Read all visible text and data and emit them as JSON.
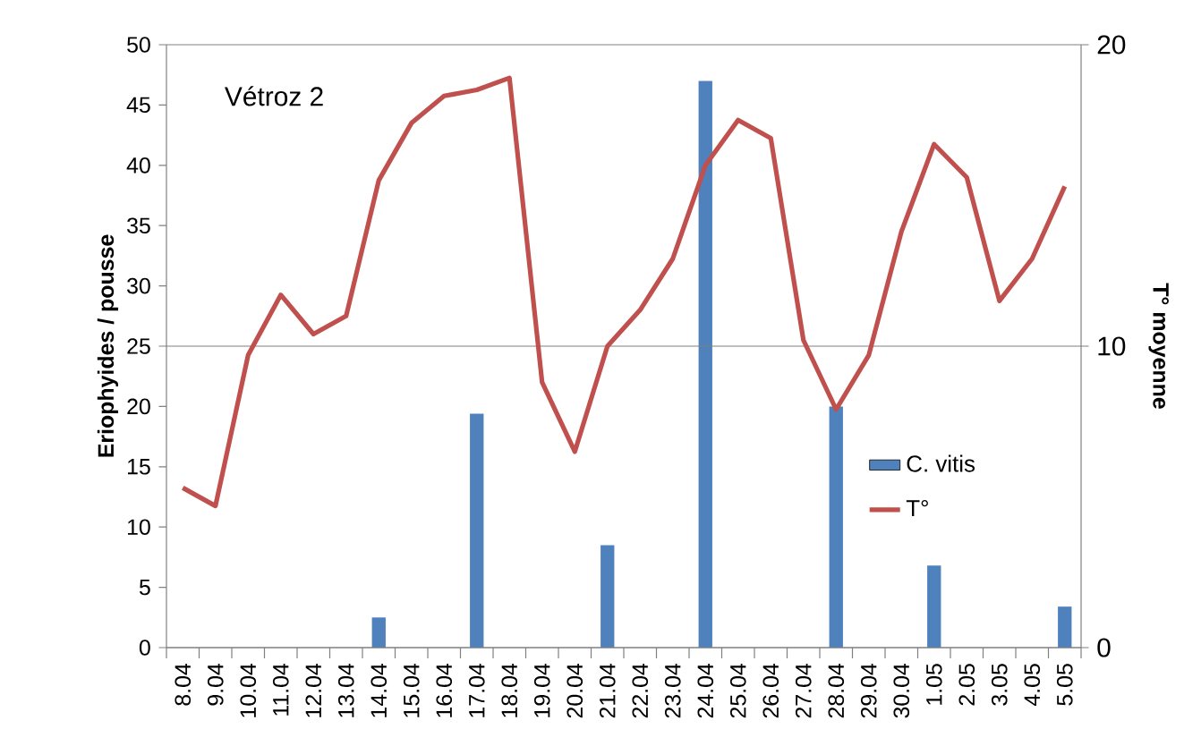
{
  "chart_data": {
    "type": "bar",
    "categories": [
      "8.04",
      "9.04",
      "10.04",
      "11.04",
      "12.04",
      "13.04",
      "14.04",
      "15.04",
      "16.04",
      "17.04",
      "18.04",
      "19.04",
      "20.04",
      "21.04",
      "22.04",
      "23.04",
      "24.04",
      "25.04",
      "26.04",
      "27.04",
      "28.04",
      "29.04",
      "30.04",
      "1.05",
      "2.05",
      "3.05",
      "4.05",
      "5.05"
    ],
    "series": [
      {
        "name": "C. vitis",
        "color": "#4f81bd",
        "values": [
          null,
          null,
          null,
          null,
          null,
          null,
          2.5,
          null,
          null,
          19.4,
          null,
          null,
          null,
          8.5,
          null,
          null,
          47,
          null,
          null,
          null,
          20,
          null,
          null,
          6.8,
          null,
          null,
          null,
          3.4
        ]
      },
      {
        "name": "T°",
        "type": "line",
        "axis": "y2",
        "color": "#c0504d",
        "values": [
          5.3,
          4.7,
          9.7,
          11.7,
          10.4,
          11.0,
          15.5,
          17.4,
          18.3,
          18.5,
          18.9,
          8.8,
          6.5,
          10.0,
          11.2,
          12.9,
          16.0,
          17.5,
          16.9,
          10.2,
          7.9,
          9.7,
          13.8,
          16.7,
          15.6,
          11.5,
          12.9,
          15.3
        ]
      }
    ],
    "ylabel": "Eriophyides / pousse",
    "y2label": "T° moyenne",
    "ylim": [
      0,
      50
    ],
    "yticks": [
      0,
      5,
      10,
      15,
      20,
      25,
      30,
      35,
      40,
      45,
      50
    ],
    "y2lim": [
      0,
      20
    ],
    "y2ticks": [
      0,
      10,
      20
    ],
    "annotations": [
      "Vétroz 2"
    ],
    "grid": "y",
    "legend": "right",
    "marker": "none",
    "line_style": "solid"
  }
}
